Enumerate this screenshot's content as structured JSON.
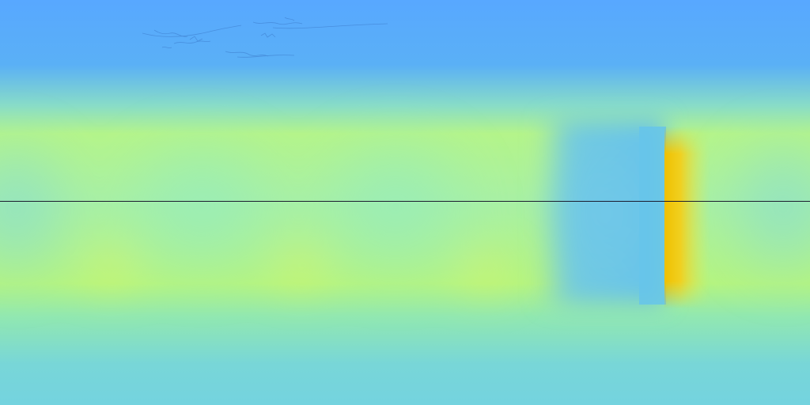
{
  "scene": {
    "palette": {
      "sky": "#58a8ff",
      "band_mid": "#9af0b8",
      "warm": "#c8ff70",
      "hot": "#f0c400",
      "cool": "#6ec8e8",
      "floor": "#74d3df",
      "horizon": "#1a1a2e",
      "sketch": "#3a78c8"
    },
    "features": [
      "sky-region",
      "bright-band",
      "vertical-hot-strip",
      "cool-rectangle",
      "ground-region",
      "faint-sketch-marks"
    ]
  }
}
